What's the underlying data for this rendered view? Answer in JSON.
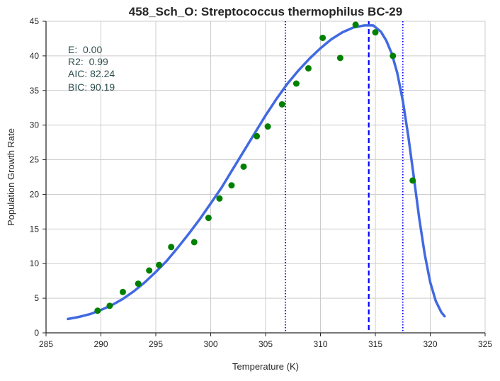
{
  "chart_data": {
    "type": "scatter",
    "title": "458_Sch_O: Streptococcus thermophilus BC-29",
    "xlabel": "Temperature (K)",
    "ylabel": "Population Growth Rate",
    "xlim": [
      285,
      325
    ],
    "ylim": [
      0,
      45
    ],
    "xticks": [
      285,
      290,
      295,
      300,
      305,
      310,
      315,
      320,
      325
    ],
    "yticks": [
      0,
      5,
      10,
      15,
      20,
      25,
      30,
      35,
      40,
      45
    ],
    "grid": true,
    "annotations": [
      "E:  0.00",
      "R2:  0.99",
      "AIC: 82.24",
      "BIC: 90.19"
    ],
    "series": [
      {
        "kind": "scatter",
        "color": "#008000",
        "points": [
          [
            289.7,
            3.2
          ],
          [
            290.8,
            3.9
          ],
          [
            292.0,
            5.9
          ],
          [
            293.4,
            7.1
          ],
          [
            294.4,
            9.0
          ],
          [
            295.3,
            9.8
          ],
          [
            296.4,
            12.4
          ],
          [
            298.5,
            13.1
          ],
          [
            299.8,
            16.6
          ],
          [
            300.8,
            19.4
          ],
          [
            301.9,
            21.3
          ],
          [
            303.0,
            24.0
          ],
          [
            304.2,
            28.4
          ],
          [
            305.2,
            29.8
          ],
          [
            306.5,
            33.0
          ],
          [
            307.8,
            36.0
          ],
          [
            308.9,
            38.2
          ],
          [
            310.2,
            42.6
          ],
          [
            311.8,
            39.7
          ],
          [
            313.2,
            44.5
          ],
          [
            315.0,
            43.4
          ],
          [
            316.6,
            40.0
          ],
          [
            318.4,
            22.0
          ]
        ]
      },
      {
        "kind": "line",
        "color": "#4169E1",
        "points": [
          [
            287.0,
            2.0
          ],
          [
            288.0,
            2.3
          ],
          [
            289.0,
            2.7
          ],
          [
            290.0,
            3.3
          ],
          [
            291.0,
            4.0
          ],
          [
            292.0,
            4.9
          ],
          [
            293.0,
            6.0
          ],
          [
            294.0,
            7.3
          ],
          [
            295.0,
            8.8
          ],
          [
            296.0,
            10.4
          ],
          [
            297.0,
            12.3
          ],
          [
            298.0,
            14.3
          ],
          [
            299.0,
            16.4
          ],
          [
            300.0,
            18.7
          ],
          [
            301.0,
            21.0
          ],
          [
            302.0,
            23.6
          ],
          [
            303.0,
            26.2
          ],
          [
            304.0,
            28.8
          ],
          [
            305.0,
            31.4
          ],
          [
            306.0,
            33.8
          ],
          [
            307.0,
            36.0
          ],
          [
            308.0,
            37.9
          ],
          [
            309.0,
            39.6
          ],
          [
            310.0,
            41.1
          ],
          [
            311.0,
            42.4
          ],
          [
            312.0,
            43.4
          ],
          [
            313.0,
            44.1
          ],
          [
            314.0,
            44.4
          ],
          [
            314.8,
            44.4
          ],
          [
            315.5,
            43.5
          ],
          [
            316.0,
            42.2
          ],
          [
            316.5,
            40.3
          ],
          [
            317.0,
            37.5
          ],
          [
            317.5,
            33.5
          ],
          [
            318.0,
            28.4
          ],
          [
            318.5,
            22.5
          ],
          [
            319.0,
            16.5
          ],
          [
            319.5,
            11.3
          ],
          [
            320.0,
            7.3
          ],
          [
            320.5,
            4.6
          ],
          [
            321.0,
            3.0
          ],
          [
            321.3,
            2.4
          ]
        ]
      }
    ],
    "vlines": [
      {
        "x": 306.8,
        "style": "dotted",
        "color": "#0000ff"
      },
      {
        "x": 314.4,
        "style": "dashed",
        "color": "#0000ff"
      },
      {
        "x": 317.5,
        "style": "dotted",
        "color": "#0000ff"
      }
    ]
  }
}
